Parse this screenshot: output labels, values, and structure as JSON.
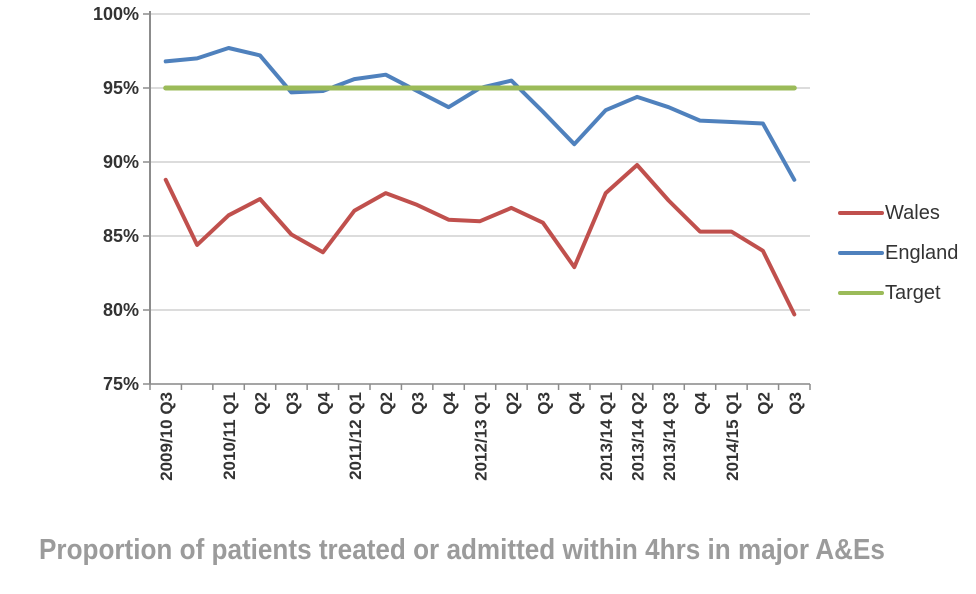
{
  "caption": "Proportion of patients treated or admitted within 4hrs in major A&Es",
  "chart_data": {
    "type": "line",
    "title": "Proportion of patients treated or admitted within 4hrs in major A&Es",
    "categories": [
      "2009/10 Q3",
      "",
      "2010/11 Q1",
      "Q2",
      "Q3",
      "Q4",
      "2011/12 Q1",
      "Q2",
      "Q3",
      "Q4",
      "2012/13 Q1",
      "Q2",
      "Q3",
      "Q4",
      "2013/14 Q1",
      "2013/14 Q2",
      "2013/14 Q3",
      "Q4",
      "2014/15 Q1",
      "Q2",
      "Q3"
    ],
    "yticks": [
      "100%",
      "95%",
      "90%",
      "85%",
      "80%",
      "75%"
    ],
    "ylim": [
      75,
      100
    ],
    "xlabel": "",
    "ylabel": "",
    "grid": true,
    "legend_position": "right",
    "series": [
      {
        "name": "Wales",
        "color": "#C0504D",
        "width": 4,
        "values": [
          88.8,
          84.4,
          86.4,
          87.5,
          85.1,
          83.9,
          86.7,
          87.9,
          87.1,
          86.1,
          86.0,
          86.9,
          85.9,
          82.9,
          87.9,
          89.8,
          87.4,
          85.3,
          85.3,
          84.0,
          79.7
        ]
      },
      {
        "name": "England",
        "color": "#4F81BD",
        "width": 4,
        "values": [
          96.8,
          97.0,
          97.7,
          97.2,
          94.7,
          94.8,
          95.6,
          95.9,
          94.8,
          93.7,
          95.0,
          95.5,
          93.4,
          91.2,
          93.5,
          94.4,
          93.7,
          92.8,
          92.7,
          92.6,
          88.8
        ]
      },
      {
        "name": "Target",
        "color": "#9BBB59",
        "width": 5,
        "values": [
          95,
          95,
          95,
          95,
          95,
          95,
          95,
          95,
          95,
          95,
          95,
          95,
          95,
          95,
          95,
          95,
          95,
          95,
          95,
          95,
          95
        ]
      }
    ],
    "axis_color": "#8c8c8c",
    "grid_color": "#c6c6c6"
  }
}
